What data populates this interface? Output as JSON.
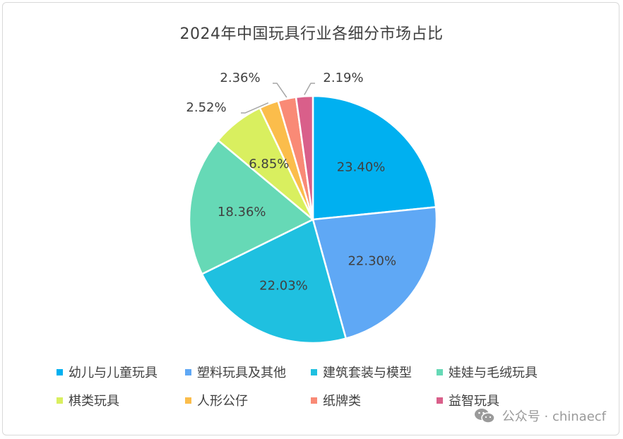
{
  "chart_data": {
    "type": "pie",
    "title": "2024年中国玩具行业各细分市场占比",
    "categories": [
      "幼儿与儿童玩具",
      "塑料玩具及其他",
      "建筑套装与模型",
      "娃娃与毛绒玩具",
      "棋类玩具",
      "人形公仔",
      "纸牌类",
      "益智玩具"
    ],
    "values": [
      23.4,
      22.3,
      22.03,
      18.36,
      6.85,
      2.52,
      2.36,
      2.19
    ],
    "data_labels": [
      "23.40%",
      "22.30%",
      "22.03%",
      "18.36%",
      "6.85%",
      "2.52%",
      "2.36%",
      "2.19%"
    ],
    "colors": [
      "#00b0f0",
      "#5fa8f5",
      "#1fc0e0",
      "#66d9b6",
      "#d9ef5f",
      "#fbbd4b",
      "#f98a76",
      "#d95f8a"
    ],
    "legend_position": "bottom",
    "start_angle": "12 o'clock",
    "direction": "clockwise"
  },
  "watermark": {
    "icon": "wechat-icon",
    "text": "公众号 · chinaecf"
  }
}
